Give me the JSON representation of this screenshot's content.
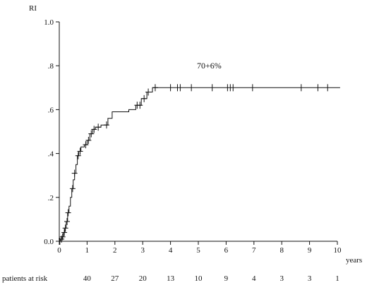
{
  "chart_data": {
    "type": "line",
    "title": "",
    "ylabel": "RI",
    "xlabel": "years",
    "annotation": "70+6%",
    "xlim": [
      0,
      10
    ],
    "ylim": [
      0,
      1.0
    ],
    "x_ticks": [
      {
        "value": 0,
        "label": "0"
      },
      {
        "value": 1,
        "label": "1"
      },
      {
        "value": 2,
        "label": "2"
      },
      {
        "value": 3,
        "label": "3"
      },
      {
        "value": 4,
        "label": "4"
      },
      {
        "value": 5,
        "label": "5"
      },
      {
        "value": 6,
        "label": "6"
      },
      {
        "value": 7,
        "label": "7"
      },
      {
        "value": 8,
        "label": "8"
      },
      {
        "value": 9,
        "label": "9"
      },
      {
        "value": 10,
        "label": "10"
      }
    ],
    "y_ticks": [
      {
        "value": 0,
        "label": "0.0"
      },
      {
        "value": 0.2,
        "label": ".2"
      },
      {
        "value": 0.4,
        "label": ".4"
      },
      {
        "value": 0.6,
        "label": ".6"
      },
      {
        "value": 0.8,
        "label": ".8"
      },
      {
        "value": 1.0,
        "label": "1.0"
      }
    ],
    "grid": false,
    "series": [
      {
        "step_points": [
          [
            0,
            0
          ],
          [
            0.05,
            0
          ],
          [
            0.05,
            0.01
          ],
          [
            0.1,
            0.01
          ],
          [
            0.1,
            0.02
          ],
          [
            0.15,
            0.02
          ],
          [
            0.15,
            0.04
          ],
          [
            0.2,
            0.04
          ],
          [
            0.2,
            0.06
          ],
          [
            0.25,
            0.06
          ],
          [
            0.25,
            0.09
          ],
          [
            0.3,
            0.09
          ],
          [
            0.3,
            0.13
          ],
          [
            0.35,
            0.13
          ],
          [
            0.35,
            0.16
          ],
          [
            0.4,
            0.16
          ],
          [
            0.4,
            0.2
          ],
          [
            0.45,
            0.2
          ],
          [
            0.45,
            0.24
          ],
          [
            0.5,
            0.24
          ],
          [
            0.5,
            0.28
          ],
          [
            0.55,
            0.28
          ],
          [
            0.55,
            0.31
          ],
          [
            0.6,
            0.31
          ],
          [
            0.6,
            0.35
          ],
          [
            0.65,
            0.35
          ],
          [
            0.65,
            0.39
          ],
          [
            0.7,
            0.39
          ],
          [
            0.7,
            0.41
          ],
          [
            0.78,
            0.41
          ],
          [
            0.78,
            0.43
          ],
          [
            0.9,
            0.43
          ],
          [
            0.9,
            0.44
          ],
          [
            1.0,
            0.44
          ],
          [
            1.0,
            0.46
          ],
          [
            1.1,
            0.46
          ],
          [
            1.1,
            0.49
          ],
          [
            1.2,
            0.49
          ],
          [
            1.2,
            0.51
          ],
          [
            1.3,
            0.51
          ],
          [
            1.3,
            0.52
          ],
          [
            1.5,
            0.52
          ],
          [
            1.5,
            0.53
          ],
          [
            1.75,
            0.53
          ],
          [
            1.75,
            0.56
          ],
          [
            1.9,
            0.56
          ],
          [
            1.9,
            0.59
          ],
          [
            2.5,
            0.59
          ],
          [
            2.5,
            0.6
          ],
          [
            2.75,
            0.6
          ],
          [
            2.75,
            0.62
          ],
          [
            2.95,
            0.62
          ],
          [
            2.95,
            0.65
          ],
          [
            3.15,
            0.65
          ],
          [
            3.15,
            0.68
          ],
          [
            3.35,
            0.68
          ],
          [
            3.35,
            0.7
          ],
          [
            10.1,
            0.7
          ]
        ],
        "censor_x": [
          0.02,
          0.08,
          0.12,
          0.18,
          0.22,
          0.28,
          0.32,
          0.48,
          0.55,
          0.68,
          0.75,
          0.95,
          1.05,
          1.15,
          1.25,
          1.4,
          1.7,
          2.8,
          2.9,
          3.05,
          3.2,
          3.45,
          4.0,
          4.25,
          4.35,
          4.75,
          5.5,
          6.05,
          6.15,
          6.25,
          6.95,
          8.7,
          9.3,
          9.65
        ]
      }
    ],
    "at_risk": {
      "label": "patients at risk",
      "entries": [
        {
          "x": 1,
          "value": "40"
        },
        {
          "x": 2,
          "value": "27"
        },
        {
          "x": 3,
          "value": "20"
        },
        {
          "x": 4,
          "value": "13"
        },
        {
          "x": 5,
          "value": "10"
        },
        {
          "x": 6,
          "value": "9"
        },
        {
          "x": 7,
          "value": "4"
        },
        {
          "x": 8,
          "value": "3"
        },
        {
          "x": 9,
          "value": "3"
        },
        {
          "x": 10,
          "value": "1"
        }
      ]
    }
  }
}
